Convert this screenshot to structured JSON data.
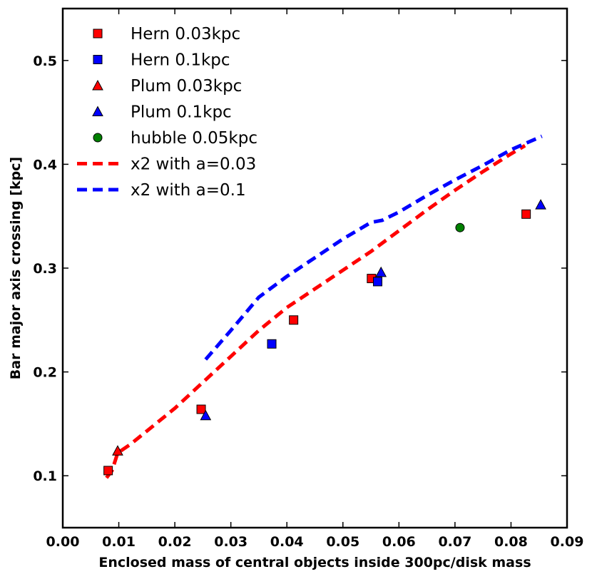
{
  "chart_data": {
    "type": "scatter",
    "title": "",
    "xlabel": "Enclosed mass of central objects inside 300pc/disk mass",
    "ylabel": "Bar major axis crossing [kpc]",
    "xlim": [
      0.0,
      0.09
    ],
    "ylim": [
      0.05,
      0.55
    ],
    "xticks": [
      0.0,
      0.01,
      0.02,
      0.03,
      0.04,
      0.05,
      0.06,
      0.07,
      0.08,
      0.09
    ],
    "xtick_labels": [
      "0.00",
      "0.01",
      "0.02",
      "0.03",
      "0.04",
      "0.05",
      "0.06",
      "0.07",
      "0.08",
      "0.09"
    ],
    "yticks": [
      0.1,
      0.2,
      0.3,
      0.4,
      0.5
    ],
    "ytick_labels": [
      "0.1",
      "0.2",
      "0.3",
      "0.4",
      "0.5"
    ],
    "legend_position": "top-left",
    "series": [
      {
        "name": "Hern 0.03kpc",
        "kind": "scatter",
        "marker": "square",
        "color": "#ff0000",
        "x": [
          0.0081,
          0.0247,
          0.0412,
          0.0551,
          0.0827
        ],
        "y": [
          0.105,
          0.164,
          0.25,
          0.29,
          0.352
        ]
      },
      {
        "name": "Hern 0.1kpc",
        "kind": "scatter",
        "marker": "square",
        "color": "#0000ff",
        "x": [
          0.0373,
          0.0562
        ],
        "y": [
          0.227,
          0.287
        ]
      },
      {
        "name": "Plum 0.03kpc",
        "kind": "scatter",
        "marker": "triangle",
        "color": "#ff0000",
        "x": [
          0.0098
        ],
        "y": [
          0.124
        ]
      },
      {
        "name": "Plum 0.1kpc",
        "kind": "scatter",
        "marker": "triangle",
        "color": "#0000ff",
        "x": [
          0.0255,
          0.0568,
          0.0853
        ],
        "y": [
          0.158,
          0.296,
          0.361
        ]
      },
      {
        "name": "hubble 0.05kpc",
        "kind": "scatter",
        "marker": "circle",
        "color": "#008000",
        "x": [
          0.0709
        ],
        "y": [
          0.339
        ]
      },
      {
        "name": "x2 with a=0.03",
        "kind": "line",
        "dash": "dashed",
        "color": "#ff0000",
        "x": [
          0.0078,
          0.0088,
          0.0098,
          0.012,
          0.015,
          0.02,
          0.025,
          0.03,
          0.035,
          0.04,
          0.045,
          0.05,
          0.055,
          0.06,
          0.065,
          0.07,
          0.075,
          0.08,
          0.0825
        ],
        "y": [
          0.098,
          0.105,
          0.122,
          0.13,
          0.143,
          0.165,
          0.19,
          0.215,
          0.24,
          0.262,
          0.28,
          0.298,
          0.316,
          0.336,
          0.356,
          0.375,
          0.393,
          0.41,
          0.418
        ]
      },
      {
        "name": "x2 with a=0.1",
        "kind": "line",
        "dash": "dashed",
        "color": "#0000ff",
        "x": [
          0.0255,
          0.03,
          0.035,
          0.04,
          0.045,
          0.05,
          0.055,
          0.057,
          0.06,
          0.065,
          0.07,
          0.075,
          0.08,
          0.0855
        ],
        "y": [
          0.212,
          0.24,
          0.272,
          0.292,
          0.31,
          0.328,
          0.344,
          0.346,
          0.354,
          0.37,
          0.385,
          0.399,
          0.414,
          0.427
        ]
      }
    ]
  }
}
